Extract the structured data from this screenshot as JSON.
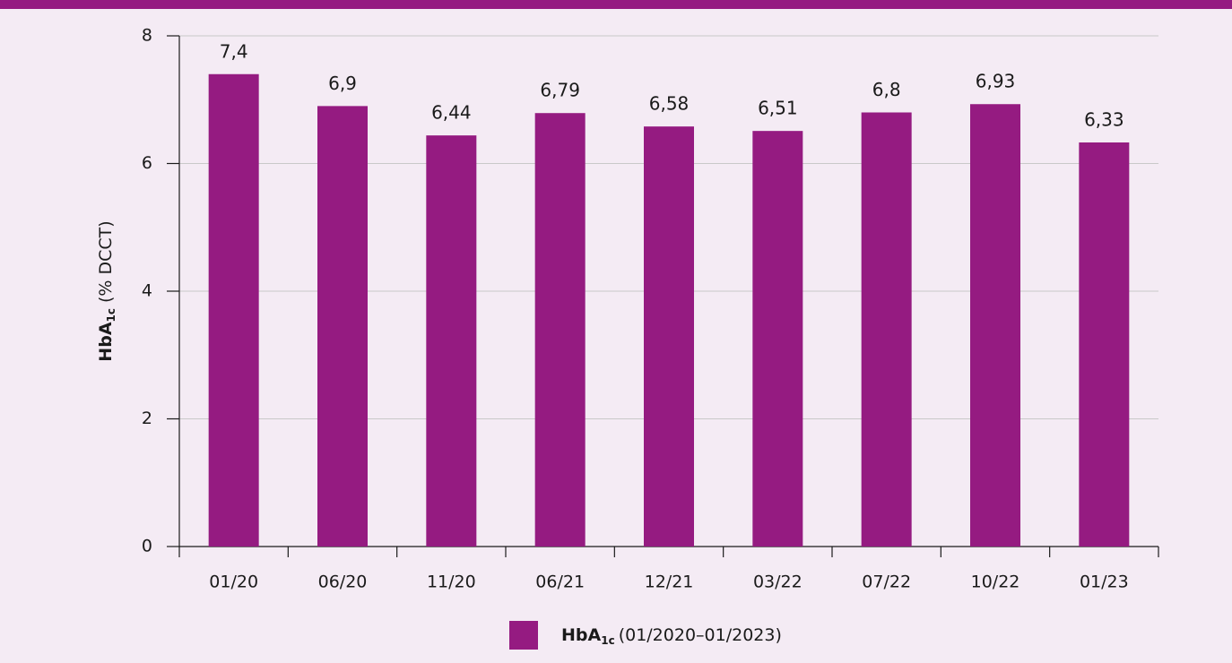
{
  "chart_data": {
    "type": "bar",
    "ylabel": {
      "main": "HbA",
      "sub": "1c",
      "rest": "(% DCCT)"
    },
    "categories": [
      "01/20",
      "06/20",
      "11/20",
      "06/21",
      "12/21",
      "03/22",
      "07/22",
      "10/22",
      "01/23"
    ],
    "series": [
      {
        "name": {
          "main": "HbA",
          "sub": "1c",
          "rest": "(01/2020–01/2023)"
        },
        "color": "#951b81",
        "values": [
          7.4,
          6.9,
          6.44,
          6.79,
          6.58,
          6.51,
          6.8,
          6.93,
          6.33
        ],
        "value_labels": [
          "7,4",
          "6,9",
          "6,44",
          "6,79",
          "6,58",
          "6,51",
          "6,8",
          "6,93",
          "6,33"
        ]
      }
    ],
    "ylim": [
      0,
      8
    ],
    "yticks": [
      0,
      2,
      4,
      6,
      8
    ],
    "grid": true
  }
}
